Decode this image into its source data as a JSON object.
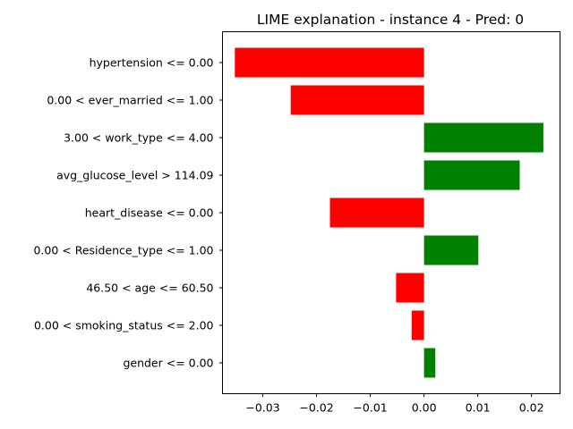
{
  "chart_data": {
    "type": "bar",
    "orientation": "horizontal",
    "title": "LIME explanation - instance 4 - Pred: 0",
    "xlabel": "",
    "ylabel": "",
    "categories": [
      "hypertension <= 0.00",
      "0.00 < ever_married <= 1.00",
      "3.00 < work_type <= 4.00",
      "avg_glucose_level > 114.09",
      "heart_disease <= 0.00",
      "0.00 < Residence_type <= 1.00",
      "46.50 < age <= 60.50",
      "0.00 < smoking_status <= 2.00",
      "gender <= 0.00"
    ],
    "values": [
      -0.0352,
      -0.0248,
      0.0222,
      0.0178,
      -0.0175,
      0.0101,
      -0.0052,
      -0.0023,
      0.0021
    ],
    "xlim": [
      -0.0375,
      0.0253
    ],
    "xticks": [
      -0.03,
      -0.02,
      -0.01,
      0.0,
      0.01,
      0.02
    ],
    "xtick_labels": [
      "−0.03",
      "−0.02",
      "−0.01",
      "0.00",
      "0.01",
      "0.02"
    ],
    "colors": {
      "positive": "#008000",
      "negative": "#ff0000"
    },
    "grid": false,
    "legend": "none"
  }
}
